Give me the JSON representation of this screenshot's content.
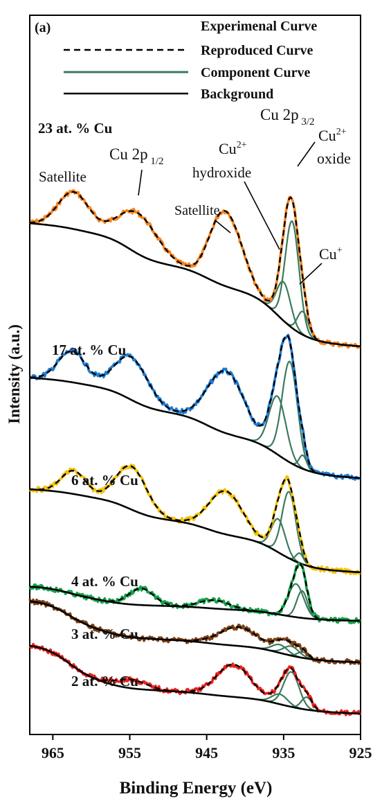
{
  "chart_data": {
    "type": "line",
    "panel_label": "(a)",
    "xlabel": "Binding Energy (eV)",
    "ylabel": "Intensity (a.u.)",
    "xlim": [
      968,
      925
    ],
    "x_reversed": true,
    "xticks": [
      965,
      955,
      945,
      935,
      925
    ],
    "legend": {
      "placement": "top",
      "entries": [
        {
          "key": "experimental",
          "label": "Experimenal Curve"
        },
        {
          "key": "reproduced",
          "label": "Reproduced Curve"
        },
        {
          "key": "component",
          "label": "Component Curve"
        },
        {
          "key": "background",
          "label": "Background"
        }
      ]
    },
    "annotations": {
      "cu2p32": "Cu 2p 3/2",
      "cu2p12": "Cu 2p 1/2",
      "satellite_left": "Satellite",
      "satellite_right": "Satellite",
      "hydroxide_a": "Cu2+",
      "hydroxide_b": "hydroxide",
      "oxide_a": "Cu2+",
      "oxide_b": "oxide",
      "cuplus": "Cu+"
    },
    "spectra": [
      {
        "name": "23 at. % Cu",
        "color": "#f7841f",
        "amp": 1.0,
        "base": 0.0,
        "peaks": [
          [
            962.3,
            3.8,
            2.0
          ],
          [
            954.0,
            4.2,
            2.6
          ],
          [
            943.5,
            4.4,
            1.6
          ],
          [
            941.5,
            4.8,
            1.8
          ],
          [
            933.9,
            11.0,
            0.9
          ],
          [
            935.0,
            4.0,
            0.9
          ],
          [
            932.5,
            2.4,
            0.7
          ]
        ]
      },
      {
        "name": "17 at. % Cu",
        "color": "#1f7bd1",
        "amp": 1.0,
        "base": 0.0,
        "peaks": [
          [
            962.5,
            1.6,
            1.8
          ],
          [
            954.8,
            2.2,
            2.2
          ],
          [
            942.5,
            3.2,
            2.4
          ],
          [
            935.8,
            3.0,
            1.1
          ],
          [
            934.2,
            5.2,
            1.0
          ],
          [
            932.5,
            0.7,
            0.5
          ]
        ]
      },
      {
        "name": "6 at. % Cu",
        "color": "#f4c20d",
        "amp": 1.0,
        "base": 0.0,
        "peaks": [
          [
            962.3,
            1.4,
            1.6
          ],
          [
            954.8,
            2.6,
            2.0
          ],
          [
            942.5,
            2.6,
            2.2
          ],
          [
            935.7,
            2.0,
            0.9
          ],
          [
            934.3,
            4.0,
            0.9
          ],
          [
            932.9,
            0.6,
            0.5
          ]
        ]
      },
      {
        "name": "4 at. % Cu",
        "color": "#14a34c",
        "amp": 1.0,
        "base": 0.0,
        "peaks": [
          [
            953.5,
            0.8,
            1.6
          ],
          [
            944.0,
            0.4,
            2.0
          ],
          [
            933.4,
            1.6,
            1.0
          ],
          [
            932.6,
            1.3,
            0.7
          ]
        ]
      },
      {
        "name": "3 at. % Cu",
        "color": "#7b3f14",
        "amp": 1.0,
        "base": 0.0,
        "peaks": [
          [
            940.8,
            0.8,
            2.5
          ],
          [
            935.5,
            0.35,
            1.0
          ],
          [
            934.0,
            0.4,
            1.0
          ],
          [
            932.5,
            0.25,
            0.7
          ]
        ]
      },
      {
        "name": "2 at. % Cu",
        "color": "#e8231f",
        "amp": 1.0,
        "base": 0.0,
        "peaks": [
          [
            954.8,
            0.35,
            2.0
          ],
          [
            941.5,
            1.3,
            2.2
          ],
          [
            935.5,
            0.4,
            1.0
          ],
          [
            934.0,
            1.4,
            1.0
          ],
          [
            932.0,
            0.5,
            0.7
          ]
        ]
      }
    ]
  }
}
